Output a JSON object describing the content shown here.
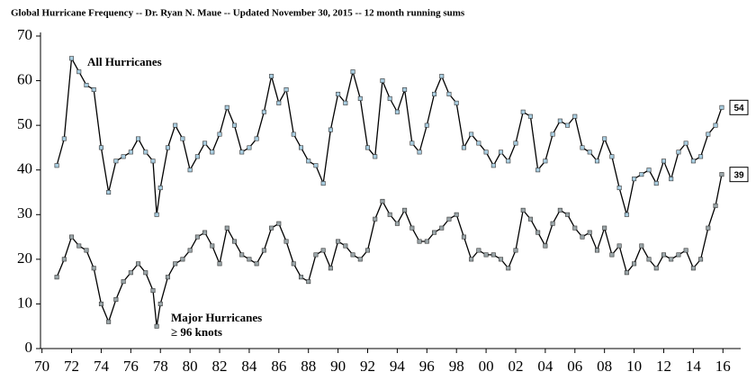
{
  "chart_data": {
    "type": "line",
    "title": "Global Hurricane Frequency -- Dr. Ryan N. Maue -- Updated November 30, 2015 -- 12 month running sums",
    "annotations": [
      "All Hurricanes",
      "Major Hurricanes",
      "≥ 96 knots"
    ],
    "x": [
      1971.0,
      1971.5,
      1972.0,
      1972.5,
      1973.0,
      1973.5,
      1974.0,
      1974.5,
      1975.0,
      1975.5,
      1976.0,
      1976.5,
      1977.0,
      1977.5,
      1977.75,
      1978.0,
      1978.5,
      1979.0,
      1979.5,
      1980.0,
      1980.5,
      1981.0,
      1981.5,
      1982.0,
      1982.5,
      1983.0,
      1983.5,
      1984.0,
      1984.5,
      1985.0,
      1985.5,
      1986.0,
      1986.5,
      1987.0,
      1987.5,
      1988.0,
      1988.5,
      1989.0,
      1989.5,
      1990.0,
      1990.5,
      1991.0,
      1991.5,
      1992.0,
      1992.5,
      1993.0,
      1993.5,
      1994.0,
      1994.5,
      1995.0,
      1995.5,
      1996.0,
      1996.5,
      1997.0,
      1997.5,
      1998.0,
      1998.5,
      1999.0,
      1999.5,
      2000.0,
      2000.5,
      2001.0,
      2001.5,
      2002.0,
      2002.5,
      2003.0,
      2003.5,
      2004.0,
      2004.5,
      2005.0,
      2005.5,
      2006.0,
      2006.5,
      2007.0,
      2007.5,
      2008.0,
      2008.5,
      2009.0,
      2009.5,
      2010.0,
      2010.5,
      2011.0,
      2011.5,
      2012.0,
      2012.5,
      2013.0,
      2013.5,
      2014.0,
      2014.5,
      2015.0,
      2015.5,
      2015.92
    ],
    "series": [
      {
        "name": "All Hurricanes",
        "color": "#000000",
        "marker_color": "#a9cde0",
        "values": [
          41,
          47,
          65,
          62,
          59,
          58,
          45,
          35,
          42,
          43,
          44,
          47,
          44,
          42,
          30,
          36,
          45,
          50,
          47,
          40,
          43,
          46,
          44,
          48,
          54,
          50,
          44,
          45,
          47,
          53,
          61,
          55,
          58,
          48,
          45,
          42,
          41,
          37,
          49,
          57,
          55,
          62,
          56,
          45,
          43,
          60,
          56,
          53,
          58,
          46,
          44,
          50,
          57,
          61,
          57,
          55,
          45,
          48,
          46,
          44,
          41,
          44,
          42,
          46,
          53,
          52,
          40,
          42,
          48,
          51,
          50,
          52,
          45,
          44,
          42,
          47,
          43,
          36,
          30,
          38,
          39,
          40,
          37,
          42,
          38,
          44,
          46,
          42,
          43,
          48,
          50,
          54
        ]
      },
      {
        "name": "Major Hurricanes",
        "color": "#000000",
        "marker_color": "#9aa5a8",
        "values": [
          16,
          20,
          25,
          23,
          22,
          18,
          10,
          6,
          11,
          15,
          17,
          19,
          17,
          13,
          5,
          10,
          16,
          19,
          20,
          22,
          25,
          26,
          23,
          19,
          27,
          24,
          21,
          20,
          19,
          22,
          27,
          28,
          24,
          19,
          16,
          15,
          21,
          22,
          18,
          24,
          23,
          21,
          20,
          22,
          29,
          33,
          30,
          28,
          31,
          27,
          24,
          24,
          26,
          27,
          29,
          30,
          25,
          20,
          22,
          21,
          21,
          20,
          18,
          22,
          31,
          29,
          26,
          23,
          28,
          31,
          30,
          27,
          25,
          26,
          22,
          27,
          21,
          23,
          17,
          19,
          23,
          20,
          18,
          21,
          20,
          21,
          22,
          18,
          20,
          27,
          32,
          39
        ]
      }
    ],
    "xlim": [
      1969.9,
      2017.2
    ],
    "xticks": [
      {
        "value": 1970,
        "label": "70"
      },
      {
        "value": 1972,
        "label": "72"
      },
      {
        "value": 1974,
        "label": "74"
      },
      {
        "value": 1976,
        "label": "76"
      },
      {
        "value": 1978,
        "label": "78"
      },
      {
        "value": 1980,
        "label": "80"
      },
      {
        "value": 1982,
        "label": "82"
      },
      {
        "value": 1984,
        "label": "84"
      },
      {
        "value": 1986,
        "label": "86"
      },
      {
        "value": 1988,
        "label": "88"
      },
      {
        "value": 1990,
        "label": "90"
      },
      {
        "value": 1992,
        "label": "92"
      },
      {
        "value": 1994,
        "label": "94"
      },
      {
        "value": 1996,
        "label": "96"
      },
      {
        "value": 1998,
        "label": "98"
      },
      {
        "value": 2000,
        "label": "00"
      },
      {
        "value": 2002,
        "label": "02"
      },
      {
        "value": 2004,
        "label": "04"
      },
      {
        "value": 2006,
        "label": "06"
      },
      {
        "value": 2008,
        "label": "08"
      },
      {
        "value": 2010,
        "label": "10"
      },
      {
        "value": 2012,
        "label": "12"
      },
      {
        "value": 2014,
        "label": "14"
      },
      {
        "value": 2016,
        "label": "16"
      }
    ],
    "ylim": [
      0,
      70
    ],
    "yticks": [
      0,
      10,
      20,
      30,
      40,
      50,
      60,
      70
    ],
    "grid": false
  }
}
